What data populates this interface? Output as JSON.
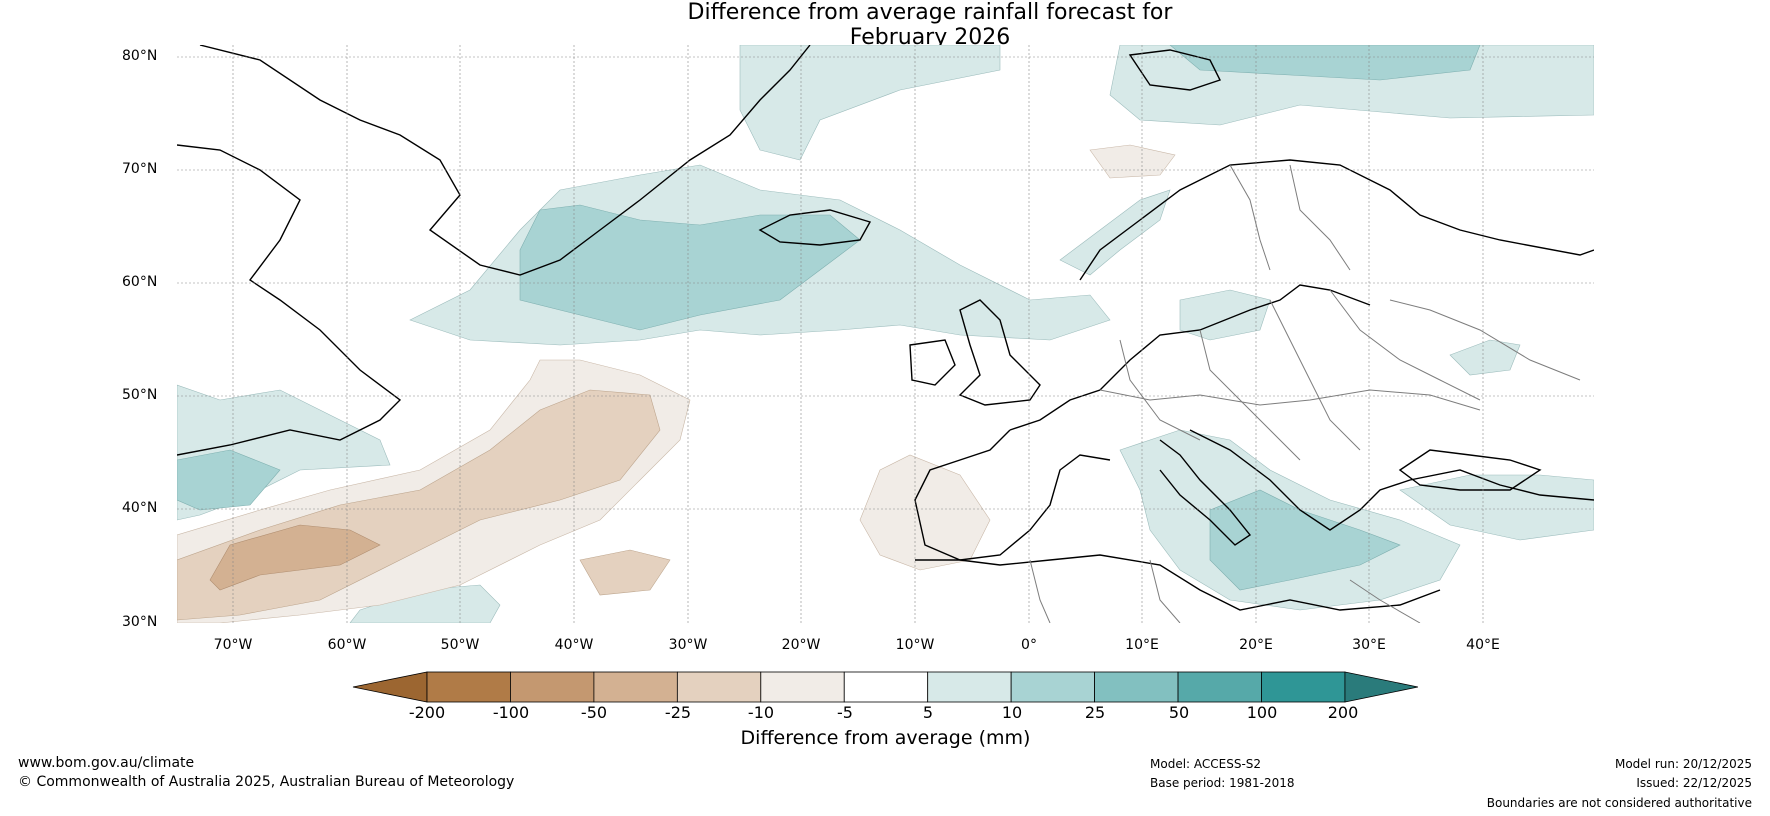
{
  "title_line1": "Difference from average rainfall forecast for",
  "title_line2": "February 2026",
  "lat_labels": [
    "80°N",
    "70°N",
    "60°N",
    "50°N",
    "40°N",
    "30°N"
  ],
  "lon_labels": [
    "70°W",
    "60°W",
    "50°W",
    "40°W",
    "30°W",
    "20°W",
    "10°W",
    "0°",
    "10°E",
    "20°E",
    "30°E",
    "40°E"
  ],
  "colorbar": {
    "ticks": [
      "-200",
      "-100",
      "-50",
      "-25",
      "-10",
      "-5",
      "5",
      "10",
      "25",
      "50",
      "100",
      "200"
    ],
    "colors": [
      "#9c6631",
      "#b07b47",
      "#c49870",
      "#d3b192",
      "#e4d1bf",
      "#f1ece7",
      "#ffffff",
      "#d7e9e8",
      "#a8d3d3",
      "#82c0c0",
      "#56a9a9",
      "#2f9696",
      "#2a7b7b"
    ],
    "label": "Difference from average (mm)"
  },
  "footer": {
    "website": "www.bom.gov.au/climate",
    "copyright": "© Commonwealth of Australia 2025, Australian Bureau of Meteorology",
    "model": "Model: ACCESS-S2",
    "base_period": "Base period: 1981-2018",
    "model_run": "Model run: 20/12/2025",
    "issued": "Issued: 22/12/2025",
    "disclaimer": "Boundaries are not considered authoritative"
  }
}
